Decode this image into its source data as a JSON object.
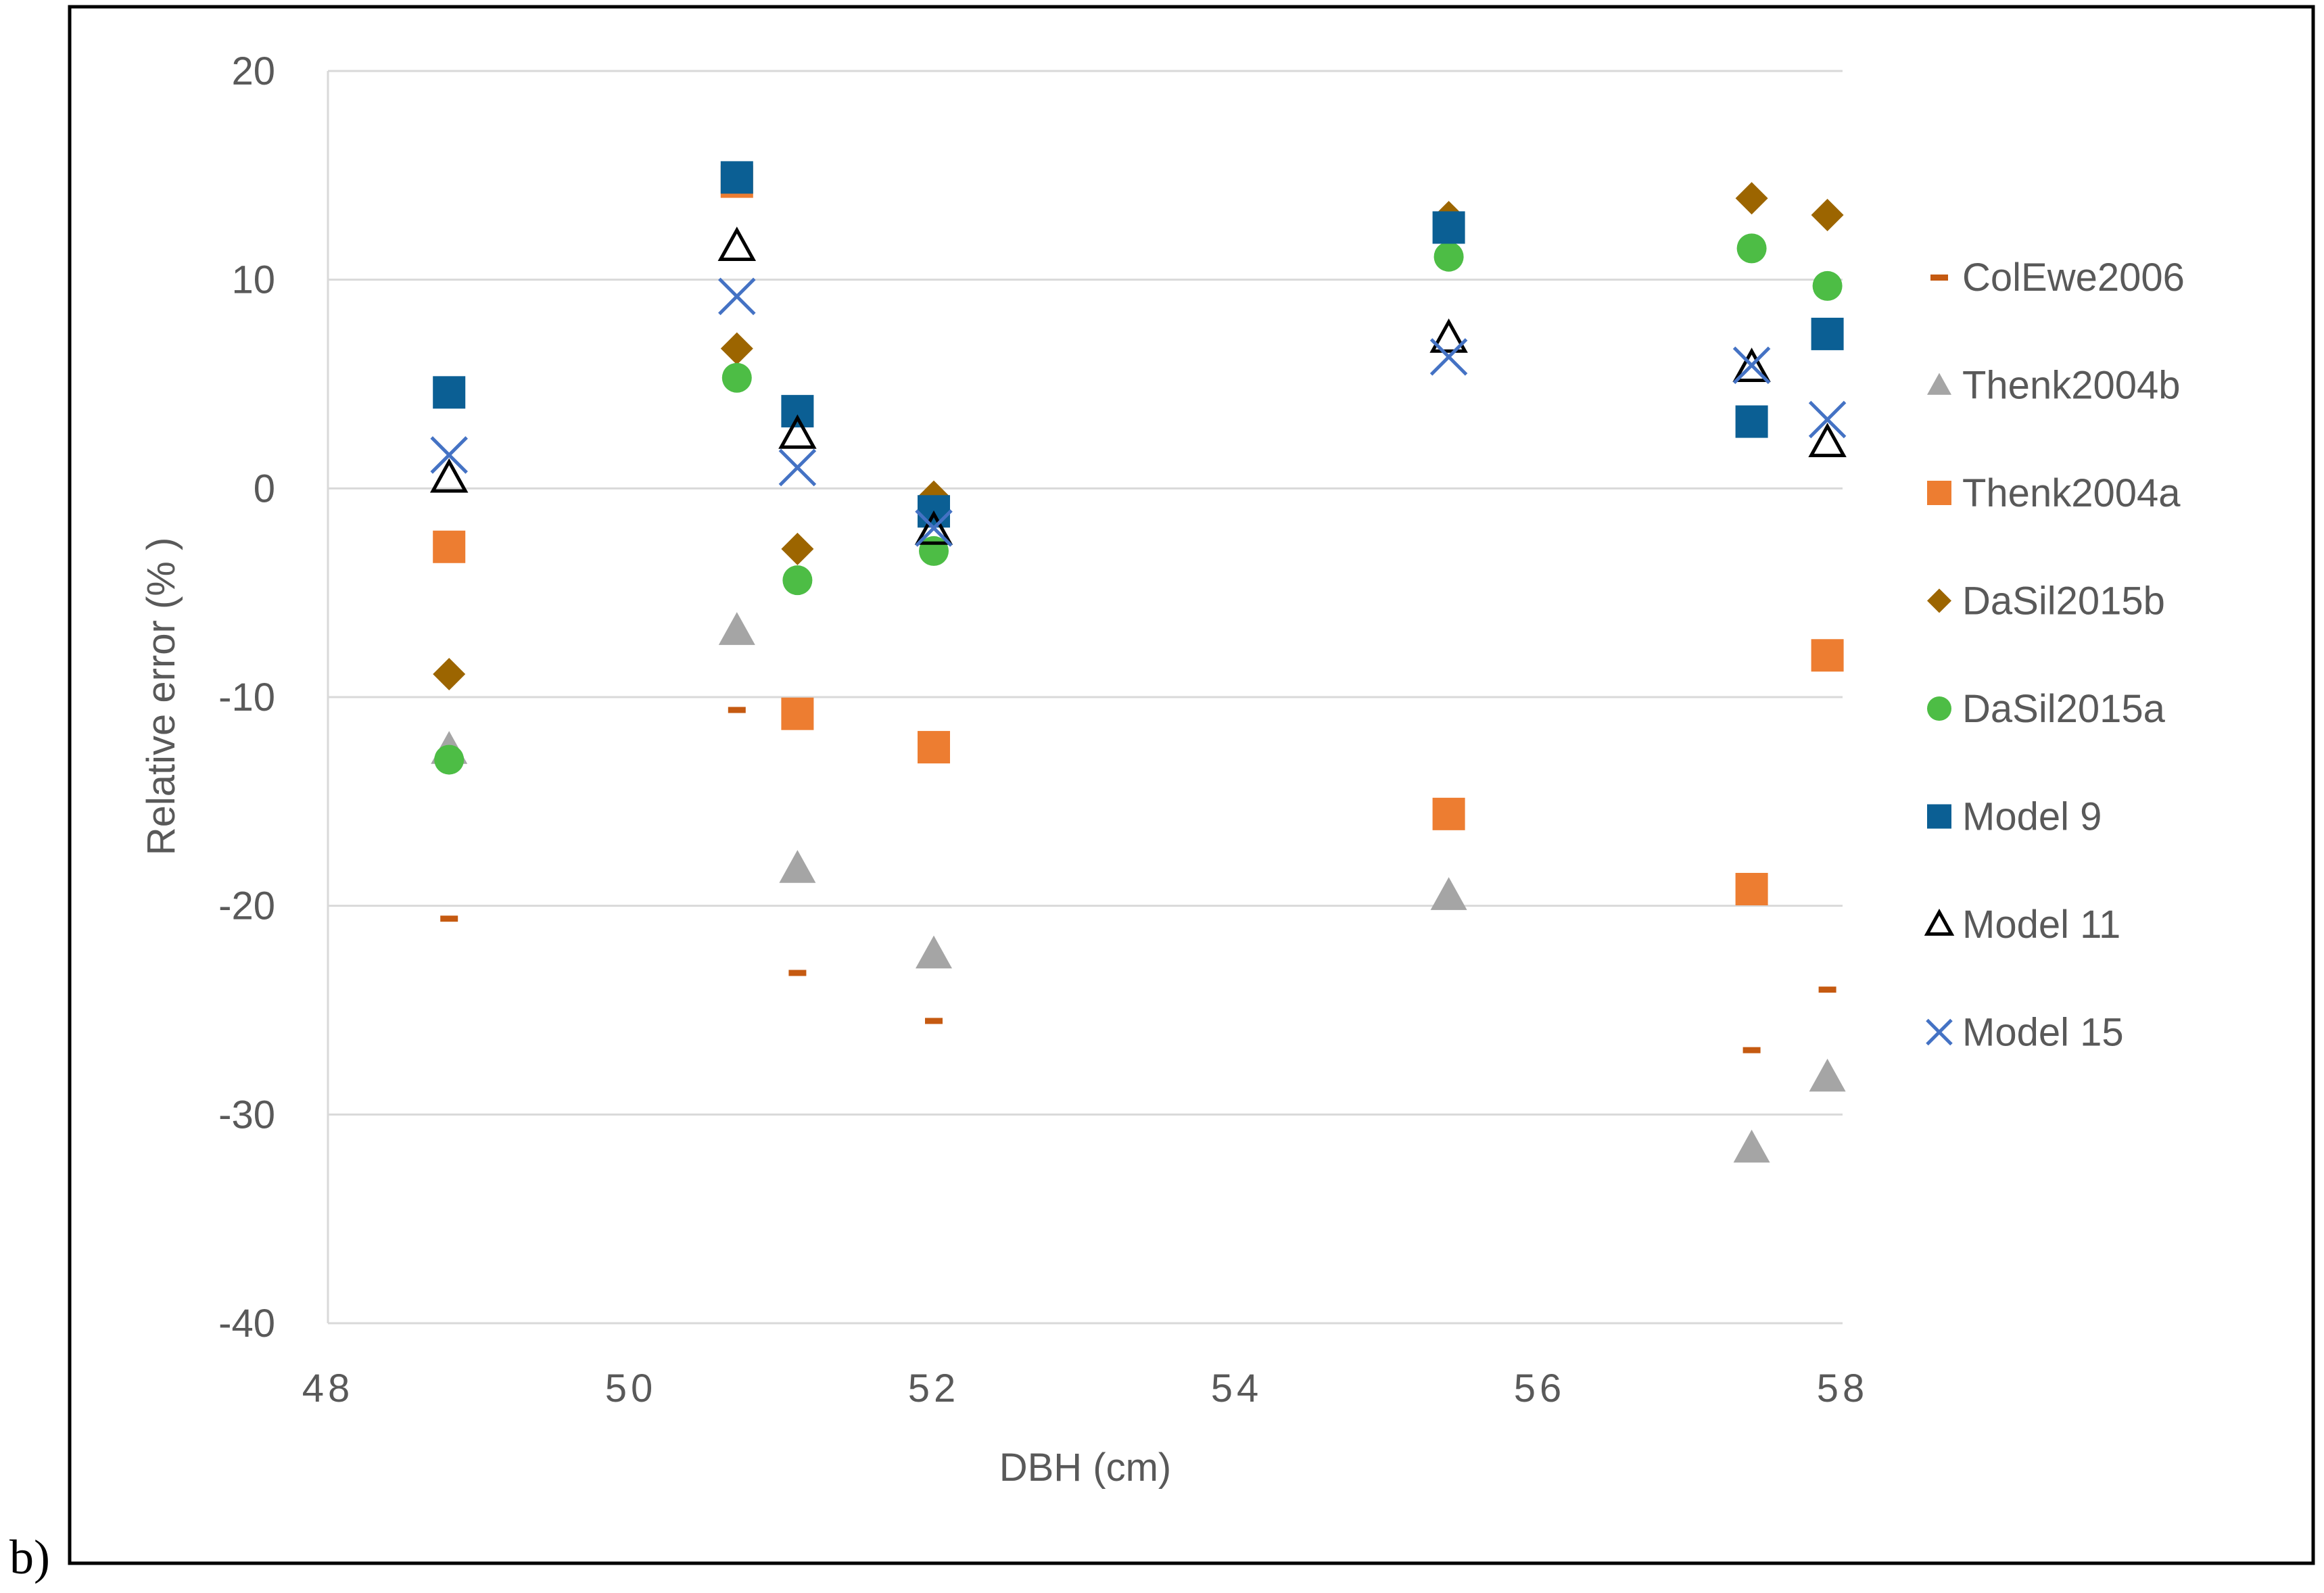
{
  "panel_label": "b)",
  "chart_data": {
    "type": "scatter",
    "title": "",
    "xlabel": "DBH (cm)",
    "ylabel": "Relative error (% )",
    "xlim": [
      48,
      58
    ],
    "ylim": [
      -40,
      20
    ],
    "x_ticks": [
      "48",
      "50",
      "52",
      "54",
      "56",
      "58"
    ],
    "y_ticks": [
      "20",
      "10",
      "0",
      "-10",
      "-20",
      "-30",
      "-40"
    ],
    "x_tick_values": [
      48,
      50,
      52,
      54,
      56,
      58
    ],
    "y_tick_values": [
      20,
      10,
      0,
      -10,
      -20,
      -30,
      -40
    ],
    "grid": "horizontal",
    "legend_position": "right",
    "x": [
      48.8,
      50.7,
      51.1,
      52.0,
      55.4,
      57.4,
      57.9
    ],
    "series": [
      {
        "name": "ColEwe2006",
        "marker": "dash",
        "color": "#c55a11",
        "values": [
          -20.6,
          -10.6,
          -23.2,
          -25.5,
          -16.2,
          -26.9,
          -24.0
        ]
      },
      {
        "name": "Thenk2004b",
        "marker": "triangle",
        "color": "#a5a5a5",
        "values": [
          -12.5,
          -6.8,
          -18.2,
          -22.3,
          -19.5,
          -31.6,
          -28.2
        ]
      },
      {
        "name": "Thenk2004a",
        "marker": "square",
        "color": "#ed7d31",
        "values": [
          -2.8,
          14.7,
          -10.8,
          -12.4,
          -15.6,
          -19.2,
          -8.0
        ]
      },
      {
        "name": "DaSil2015b",
        "marker": "diamond",
        "color": "#9c6500",
        "values": [
          -8.9,
          6.7,
          -2.9,
          -0.4,
          13.0,
          13.9,
          13.1
        ]
      },
      {
        "name": "DaSil2015a",
        "marker": "circle",
        "color": "#4dbd45",
        "values": [
          -13.0,
          5.3,
          -4.4,
          -3.0,
          11.1,
          11.5,
          9.7
        ]
      },
      {
        "name": "Model 9",
        "marker": "square",
        "color": "#0b5f94",
        "values": [
          4.6,
          14.9,
          3.7,
          -1.1,
          12.5,
          3.2,
          7.4
        ]
      },
      {
        "name": "Model 11",
        "marker": "triangle-open",
        "color": "#000000",
        "values": [
          0.5,
          11.6,
          2.6,
          -2.0,
          7.2,
          5.8,
          2.2
        ]
      },
      {
        "name": "Model 15",
        "marker": "x",
        "color": "#4472c4",
        "values": [
          1.6,
          9.2,
          1.0,
          -1.9,
          6.3,
          5.9,
          3.3
        ]
      }
    ]
  }
}
